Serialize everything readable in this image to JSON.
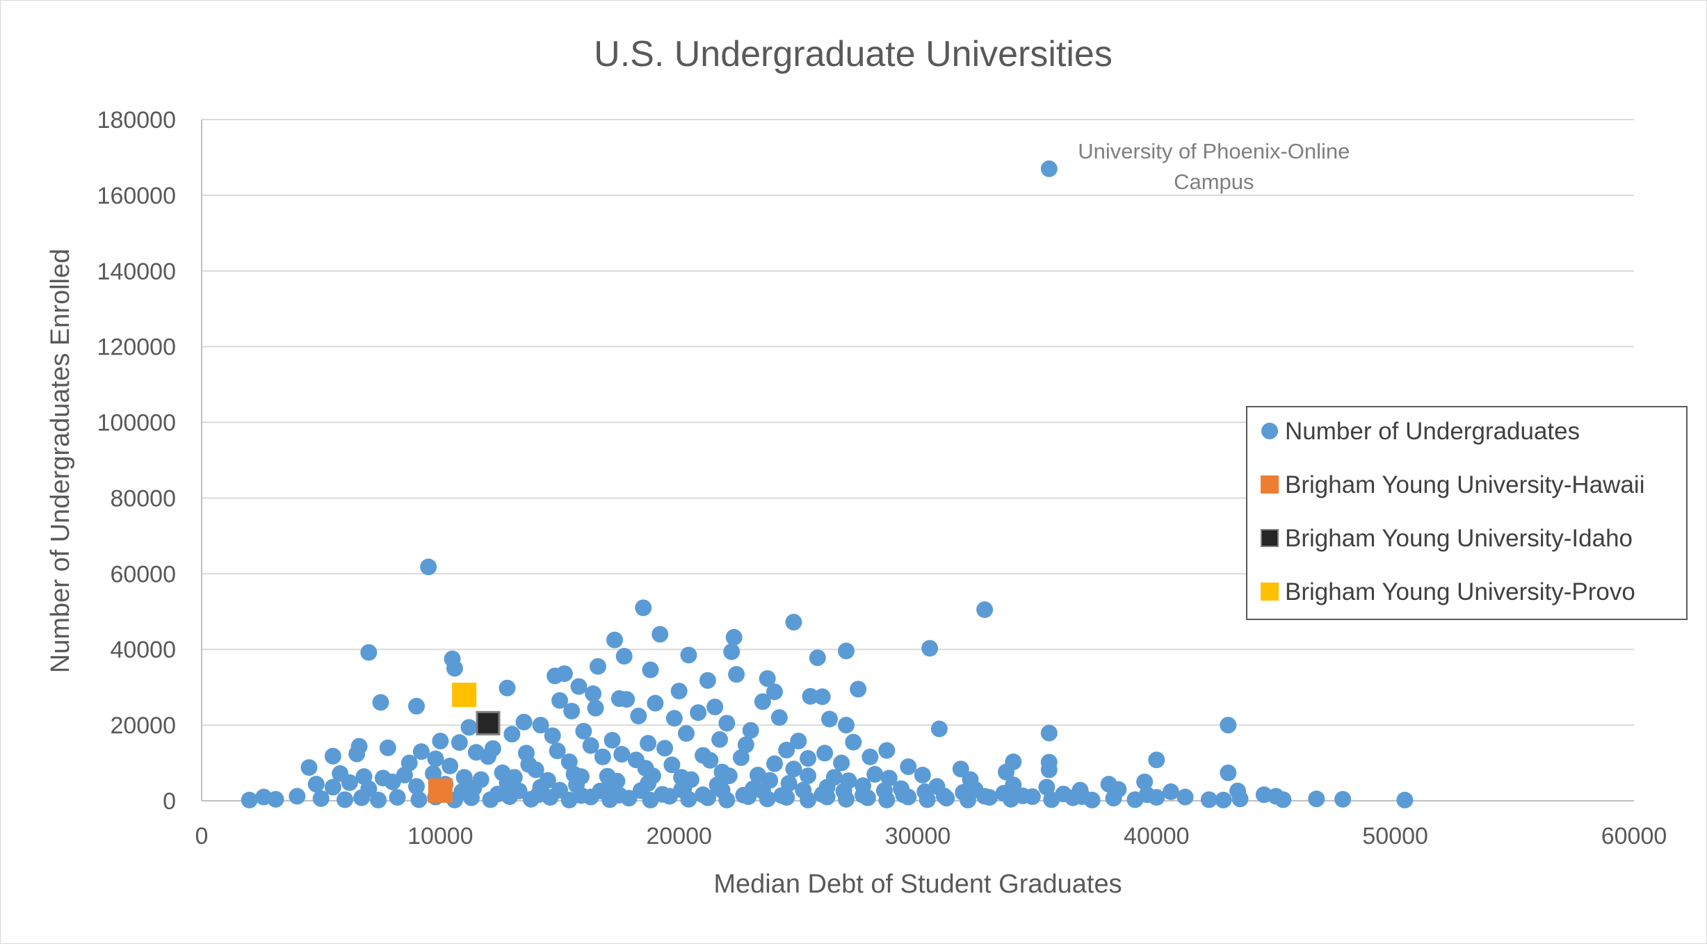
{
  "chart_data": {
    "type": "scatter",
    "title": "U.S. Undergraduate Universities",
    "xlabel": "Median Debt of Student Graduates",
    "ylabel": "Number of Undergraduates Enrolled",
    "xlim": [
      0,
      60000
    ],
    "ylim": [
      0,
      180000
    ],
    "x_ticks": [
      "0",
      "10000",
      "20000",
      "30000",
      "40000",
      "50000",
      "60000"
    ],
    "y_ticks": [
      "0",
      "20000",
      "40000",
      "60000",
      "80000",
      "100000",
      "120000",
      "140000",
      "160000",
      "180000"
    ],
    "grid": "horizontal",
    "legend_position": "right",
    "annotations": [
      {
        "text": "University of Phoenix-Online\nCampus",
        "x": 35500,
        "y": 167000
      }
    ],
    "series": [
      {
        "name": "Number of Undergraduates",
        "marker": "circle",
        "color": "#5b9bd5",
        "points": [
          [
            35500,
            167000
          ],
          [
            9500,
            61800
          ],
          [
            32800,
            50500
          ],
          [
            18500,
            51000
          ],
          [
            24800,
            47200
          ],
          [
            19200,
            44000
          ],
          [
            17300,
            42500
          ],
          [
            22300,
            43200
          ],
          [
            7000,
            39200
          ],
          [
            10500,
            37500
          ],
          [
            17700,
            38200
          ],
          [
            20400,
            38500
          ],
          [
            25800,
            37800
          ],
          [
            27000,
            39600
          ],
          [
            30500,
            40300
          ],
          [
            22200,
            39400
          ],
          [
            10600,
            35000
          ],
          [
            16600,
            35500
          ],
          [
            14800,
            33000
          ],
          [
            15200,
            33600
          ],
          [
            18800,
            34600
          ],
          [
            23700,
            32300
          ],
          [
            12800,
            29800
          ],
          [
            15800,
            30200
          ],
          [
            17500,
            27000
          ],
          [
            20000,
            29000
          ],
          [
            21200,
            31800
          ],
          [
            22400,
            33400
          ],
          [
            24000,
            28800
          ],
          [
            25500,
            27600
          ],
          [
            27500,
            29500
          ],
          [
            16400,
            28300
          ],
          [
            7500,
            26000
          ],
          [
            9000,
            25000
          ],
          [
            15000,
            26500
          ],
          [
            17800,
            26800
          ],
          [
            19000,
            25800
          ],
          [
            21500,
            24800
          ],
          [
            23500,
            26200
          ],
          [
            26000,
            27500
          ],
          [
            13500,
            20800
          ],
          [
            14200,
            20000
          ],
          [
            15500,
            23700
          ],
          [
            16500,
            24500
          ],
          [
            18300,
            22400
          ],
          [
            19800,
            21800
          ],
          [
            20800,
            23300
          ],
          [
            22000,
            20500
          ],
          [
            24200,
            22000
          ],
          [
            26300,
            21600
          ],
          [
            27000,
            20000
          ],
          [
            30900,
            19000
          ],
          [
            35500,
            17900
          ],
          [
            43000,
            20000
          ],
          [
            11200,
            19400
          ],
          [
            13000,
            17600
          ],
          [
            14700,
            17200
          ],
          [
            16000,
            18400
          ],
          [
            17200,
            16000
          ],
          [
            18700,
            15200
          ],
          [
            20300,
            17800
          ],
          [
            21700,
            16200
          ],
          [
            23000,
            18600
          ],
          [
            25000,
            15800
          ],
          [
            27300,
            15500
          ],
          [
            6600,
            14400
          ],
          [
            7800,
            14000
          ],
          [
            9200,
            13000
          ],
          [
            10000,
            15800
          ],
          [
            10800,
            15400
          ],
          [
            11500,
            12800
          ],
          [
            12200,
            13800
          ],
          [
            13600,
            12600
          ],
          [
            14900,
            13200
          ],
          [
            16300,
            14600
          ],
          [
            17600,
            12300
          ],
          [
            19400,
            13900
          ],
          [
            21000,
            12000
          ],
          [
            22800,
            14800
          ],
          [
            24500,
            13400
          ],
          [
            26100,
            12600
          ],
          [
            28700,
            13300
          ],
          [
            6500,
            12400
          ],
          [
            5500,
            11800
          ],
          [
            8700,
            10000
          ],
          [
            9800,
            11100
          ],
          [
            10400,
            9200
          ],
          [
            12000,
            11700
          ],
          [
            13700,
            9600
          ],
          [
            15400,
            10300
          ],
          [
            16800,
            11600
          ],
          [
            18200,
            10800
          ],
          [
            19700,
            9500
          ],
          [
            21300,
            10700
          ],
          [
            22600,
            11400
          ],
          [
            24000,
            9800
          ],
          [
            25400,
            11200
          ],
          [
            26800,
            10000
          ],
          [
            28000,
            11600
          ],
          [
            29600,
            9000
          ],
          [
            31800,
            8400
          ],
          [
            34000,
            10300
          ],
          [
            35500,
            10200
          ],
          [
            40000,
            10800
          ],
          [
            4500,
            8800
          ],
          [
            5800,
            7200
          ],
          [
            6800,
            6400
          ],
          [
            7600,
            6000
          ],
          [
            8500,
            6800
          ],
          [
            9700,
            7200
          ],
          [
            11000,
            6200
          ],
          [
            12600,
            7400
          ],
          [
            14000,
            8200
          ],
          [
            15600,
            7000
          ],
          [
            17000,
            6500
          ],
          [
            18600,
            8600
          ],
          [
            20100,
            6200
          ],
          [
            21800,
            7600
          ],
          [
            23300,
            6800
          ],
          [
            24800,
            8400
          ],
          [
            26500,
            6200
          ],
          [
            28200,
            7000
          ],
          [
            30200,
            6800
          ],
          [
            32200,
            5600
          ],
          [
            33700,
            7600
          ],
          [
            35500,
            8200
          ],
          [
            38000,
            4400
          ],
          [
            39500,
            5000
          ],
          [
            43000,
            7400
          ],
          [
            4800,
            4400
          ],
          [
            5500,
            3600
          ],
          [
            6200,
            4800
          ],
          [
            7000,
            3200
          ],
          [
            8000,
            5000
          ],
          [
            9000,
            3800
          ],
          [
            10200,
            4400
          ],
          [
            11400,
            3400
          ],
          [
            12800,
            4800
          ],
          [
            14200,
            3600
          ],
          [
            15700,
            4200
          ],
          [
            17200,
            3000
          ],
          [
            18700,
            4600
          ],
          [
            20200,
            3400
          ],
          [
            21600,
            4200
          ],
          [
            23100,
            3200
          ],
          [
            24600,
            4600
          ],
          [
            26200,
            3600
          ],
          [
            27700,
            4000
          ],
          [
            29300,
            3200
          ],
          [
            30800,
            3800
          ],
          [
            32400,
            3000
          ],
          [
            34000,
            4200
          ],
          [
            35400,
            3600
          ],
          [
            36800,
            2800
          ],
          [
            38400,
            3000
          ],
          [
            40600,
            2400
          ],
          [
            43400,
            2600
          ],
          [
            44500,
            1600
          ],
          [
            45000,
            1200
          ],
          [
            2000,
            200
          ],
          [
            2600,
            1000
          ],
          [
            3100,
            400
          ],
          [
            4000,
            1200
          ],
          [
            5000,
            600
          ],
          [
            6000,
            300
          ],
          [
            6700,
            800
          ],
          [
            7400,
            200
          ],
          [
            8200,
            900
          ],
          [
            9100,
            300
          ],
          [
            9800,
            1000
          ],
          [
            10600,
            200
          ],
          [
            11300,
            800
          ],
          [
            12100,
            300
          ],
          [
            12900,
            1100
          ],
          [
            13800,
            400
          ],
          [
            14600,
            900
          ],
          [
            15400,
            200
          ],
          [
            16300,
            1000
          ],
          [
            17100,
            300
          ],
          [
            17900,
            700
          ],
          [
            18800,
            200
          ],
          [
            19600,
            1200
          ],
          [
            20400,
            400
          ],
          [
            21200,
            800
          ],
          [
            22000,
            200
          ],
          [
            22900,
            1100
          ],
          [
            23700,
            500
          ],
          [
            24500,
            900
          ],
          [
            25400,
            200
          ],
          [
            26200,
            1000
          ],
          [
            27000,
            400
          ],
          [
            27900,
            800
          ],
          [
            28700,
            200
          ],
          [
            29600,
            1000
          ],
          [
            30400,
            300
          ],
          [
            31200,
            700
          ],
          [
            32100,
            200
          ],
          [
            33000,
            900
          ],
          [
            33900,
            400
          ],
          [
            34800,
            1100
          ],
          [
            35600,
            300
          ],
          [
            36500,
            800
          ],
          [
            37300,
            200
          ],
          [
            38200,
            700
          ],
          [
            39100,
            300
          ],
          [
            40000,
            900
          ],
          [
            42200,
            300
          ],
          [
            42800,
            200
          ],
          [
            43500,
            500
          ],
          [
            45300,
            300
          ],
          [
            46700,
            500
          ],
          [
            47800,
            400
          ],
          [
            50400,
            200
          ],
          [
            10900,
            2400
          ],
          [
            12400,
            1800
          ],
          [
            13300,
            2600
          ],
          [
            14100,
            1600
          ],
          [
            15000,
            2800
          ],
          [
            15900,
            1400
          ],
          [
            16700,
            2600
          ],
          [
            17500,
            1500
          ],
          [
            18400,
            2700
          ],
          [
            19300,
            1700
          ],
          [
            20100,
            2900
          ],
          [
            21000,
            1600
          ],
          [
            21800,
            2800
          ],
          [
            22700,
            1500
          ],
          [
            23500,
            2600
          ],
          [
            24300,
            1400
          ],
          [
            25200,
            2800
          ],
          [
            26000,
            1700
          ],
          [
            26900,
            2500
          ],
          [
            27700,
            1500
          ],
          [
            28600,
            2700
          ],
          [
            29400,
            1600
          ],
          [
            30300,
            2400
          ],
          [
            31100,
            1300
          ],
          [
            31900,
            2200
          ],
          [
            32800,
            1200
          ],
          [
            33600,
            2000
          ],
          [
            34400,
            1300
          ],
          [
            36100,
            1800
          ],
          [
            36900,
            1100
          ],
          [
            39600,
            1600
          ],
          [
            41200,
            1000
          ],
          [
            11700,
            5600
          ],
          [
            13100,
            6200
          ],
          [
            14500,
            5400
          ],
          [
            15900,
            6400
          ],
          [
            17400,
            5200
          ],
          [
            18900,
            6600
          ],
          [
            20500,
            5600
          ],
          [
            22100,
            6600
          ],
          [
            23800,
            5400
          ],
          [
            25400,
            6600
          ],
          [
            27100,
            5300
          ],
          [
            28800,
            6000
          ]
        ]
      },
      {
        "name": "Brigham Young University-Hawaii",
        "marker": "square",
        "color": "#ed7d31",
        "points": [
          [
            10000,
            2700
          ]
        ]
      },
      {
        "name": "Brigham Young University-Idaho",
        "marker": "square",
        "color": "#262626",
        "points": [
          [
            12000,
            20500
          ]
        ]
      },
      {
        "name": "Brigham Young University-Provo",
        "marker": "square",
        "color": "#ffc000",
        "points": [
          [
            11000,
            28000
          ]
        ]
      }
    ]
  }
}
